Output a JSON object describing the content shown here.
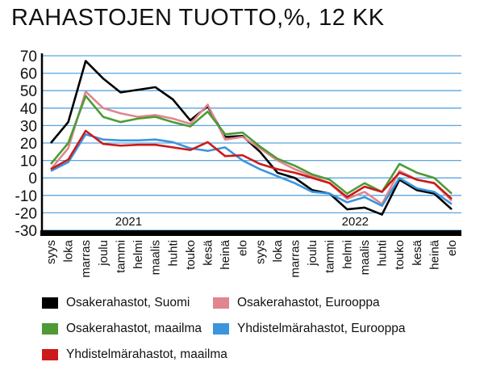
{
  "chart_data": {
    "type": "line",
    "title": "RAHASTOJEN TUOTTO,%, 12 KK",
    "xlabel": "",
    "ylabel": "",
    "ylim": [
      -30,
      70
    ],
    "yticks": [
      70,
      60,
      50,
      40,
      30,
      20,
      10,
      0,
      -10,
      -20,
      -30
    ],
    "grid": true,
    "legend_position": "bottom",
    "categories": [
      "syys",
      "loka",
      "marras",
      "joulu",
      "tammi",
      "helmi",
      "maalis",
      "huhti",
      "touko",
      "kesä",
      "heinä",
      "elo",
      "syys",
      "loka",
      "marras",
      "joulu",
      "tammi",
      "helmi",
      "maalis",
      "huhti",
      "touko",
      "kesä",
      "heinä",
      "elo"
    ],
    "year_labels": [
      "2021",
      "2022"
    ],
    "series": [
      {
        "name": "Osakerahastot, Suomi",
        "color": "#000000",
        "values": [
          20,
          32,
          67,
          57,
          49,
          50.5,
          52,
          45,
          33,
          41,
          23.5,
          24,
          15,
          3,
          0,
          -7,
          -9,
          -18,
          -17,
          -21,
          -1,
          -7,
          -9,
          -18
        ]
      },
      {
        "name": "Osakerahastot, Eurooppa",
        "color": "#e0868e",
        "values": [
          5,
          17,
          49.5,
          40,
          37,
          35,
          36,
          34,
          31,
          42,
          22,
          23.5,
          17,
          10,
          5,
          1,
          -3,
          -12,
          -8,
          -15,
          4,
          -1,
          -3,
          -13
        ]
      },
      {
        "name": "Osakerahastot, maailma",
        "color": "#4f9a35",
        "values": [
          8,
          20,
          47,
          35,
          32,
          34,
          35,
          32,
          29.5,
          38,
          25,
          26,
          18,
          11,
          7,
          2,
          -1,
          -9,
          -3,
          -8,
          8,
          3,
          0,
          -9
        ]
      },
      {
        "name": "Yhdistelmärahastot, Eurooppa",
        "color": "#3b95dc",
        "values": [
          4,
          9,
          25,
          22,
          21.5,
          21.5,
          22,
          20.5,
          17,
          15.5,
          17.5,
          10,
          5,
          1,
          -3,
          -8,
          -9,
          -14,
          -11,
          -16,
          0,
          -6,
          -8,
          -15
        ]
      },
      {
        "name": "Yhdistelmärahastot, maailma",
        "color": "#cc1a1a",
        "values": [
          5,
          10.5,
          27,
          19.5,
          18.5,
          19,
          19,
          17.5,
          16,
          20.5,
          12.5,
          13,
          8,
          5,
          3,
          0,
          -3,
          -11,
          -5,
          -8,
          3,
          -1,
          -3,
          -12
        ]
      }
    ]
  }
}
